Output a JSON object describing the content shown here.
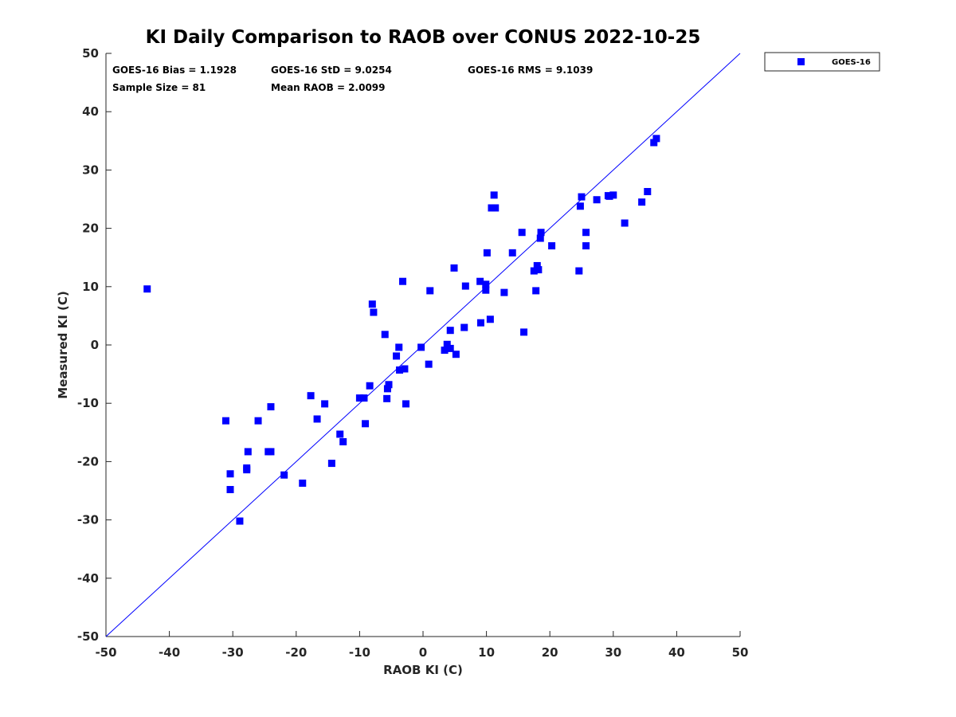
{
  "chart_data": {
    "type": "scatter",
    "title": "KI Daily Comparison to RAOB over CONUS 2022-10-25",
    "xlabel": "RAOB KI (C)",
    "ylabel": "Measured KI (C)",
    "xlim": [
      -50,
      50
    ],
    "ylim": [
      -50,
      50
    ],
    "xticks": [
      "-50",
      "-40",
      "-30",
      "-20",
      "-10",
      "0",
      "10",
      "20",
      "30",
      "40",
      "50"
    ],
    "yticks": [
      "-50",
      "-40",
      "-30",
      "-20",
      "-10",
      "0",
      "10",
      "20",
      "30",
      "40",
      "50"
    ],
    "reference_line": {
      "label": "1:1",
      "color": "#0000ff"
    },
    "legend": {
      "placement": "outside-top-right",
      "entries": [
        "GOES-16"
      ]
    },
    "stats": {
      "bias": "GOES-16 Bias = 1.1928",
      "std": "GOES-16 StD = 9.0254",
      "rms": "GOES-16 RMS = 9.1039",
      "sample_size": "Sample Size = 81",
      "mean_raob": "Mean RAOB = 2.0099"
    },
    "series": [
      {
        "name": "GOES-16",
        "color": "#0000ff",
        "marker": "square",
        "points": [
          [
            -43.5,
            9.6
          ],
          [
            -31.1,
            -13.0
          ],
          [
            -30.4,
            -22.1
          ],
          [
            -30.4,
            -24.8
          ],
          [
            -28.9,
            -30.2
          ],
          [
            -27.8,
            -21.1
          ],
          [
            -27.8,
            -21.4
          ],
          [
            -27.6,
            -18.3
          ],
          [
            -26.0,
            -13.0
          ],
          [
            -24.4,
            -18.3
          ],
          [
            -24.0,
            -18.3
          ],
          [
            -24.0,
            -10.6
          ],
          [
            -21.9,
            -22.3
          ],
          [
            -19.0,
            -23.7
          ],
          [
            -17.7,
            -8.7
          ],
          [
            -16.7,
            -12.7
          ],
          [
            -15.5,
            -10.1
          ],
          [
            -14.4,
            -20.3
          ],
          [
            -13.1,
            -15.3
          ],
          [
            -12.6,
            -16.6
          ],
          [
            -10.0,
            -9.1
          ],
          [
            -9.3,
            -9.1
          ],
          [
            -9.1,
            -13.5
          ],
          [
            -8.4,
            -7.0
          ],
          [
            -8.0,
            7.0
          ],
          [
            -7.8,
            5.6
          ],
          [
            -6.0,
            1.8
          ],
          [
            -5.7,
            -9.2
          ],
          [
            -5.6,
            -7.5
          ],
          [
            -5.4,
            -6.8
          ],
          [
            -4.2,
            -1.9
          ],
          [
            -3.8,
            -0.4
          ],
          [
            -3.7,
            -4.3
          ],
          [
            -3.2,
            10.9
          ],
          [
            -2.9,
            -4.1
          ],
          [
            -2.7,
            -10.1
          ],
          [
            -0.3,
            -0.4
          ],
          [
            0.9,
            -3.3
          ],
          [
            1.1,
            9.3
          ],
          [
            3.4,
            -0.9
          ],
          [
            3.8,
            0.1
          ],
          [
            4.3,
            -0.6
          ],
          [
            4.3,
            2.5
          ],
          [
            4.9,
            13.2
          ],
          [
            5.2,
            -1.6
          ],
          [
            6.5,
            3.0
          ],
          [
            6.7,
            10.1
          ],
          [
            9.0,
            10.9
          ],
          [
            9.1,
            3.8
          ],
          [
            9.9,
            10.4
          ],
          [
            9.9,
            9.4
          ],
          [
            10.1,
            15.8
          ],
          [
            10.6,
            4.4
          ],
          [
            10.8,
            23.5
          ],
          [
            11.2,
            25.7
          ],
          [
            11.4,
            23.5
          ],
          [
            12.8,
            9.0
          ],
          [
            14.1,
            15.8
          ],
          [
            15.6,
            19.3
          ],
          [
            15.9,
            2.2
          ],
          [
            17.5,
            12.7
          ],
          [
            17.8,
            9.3
          ],
          [
            18.0,
            13.6
          ],
          [
            18.2,
            12.9
          ],
          [
            18.5,
            18.3
          ],
          [
            18.6,
            19.3
          ],
          [
            20.3,
            17.0
          ],
          [
            24.6,
            12.7
          ],
          [
            24.8,
            23.8
          ],
          [
            25.0,
            25.4
          ],
          [
            25.7,
            19.3
          ],
          [
            25.7,
            17.0
          ],
          [
            27.4,
            24.9
          ],
          [
            29.2,
            25.6
          ],
          [
            29.4,
            25.5
          ],
          [
            30.0,
            25.7
          ],
          [
            31.8,
            20.9
          ],
          [
            34.5,
            24.5
          ],
          [
            35.4,
            26.3
          ],
          [
            36.4,
            34.7
          ],
          [
            36.8,
            35.4
          ]
        ]
      }
    ]
  }
}
